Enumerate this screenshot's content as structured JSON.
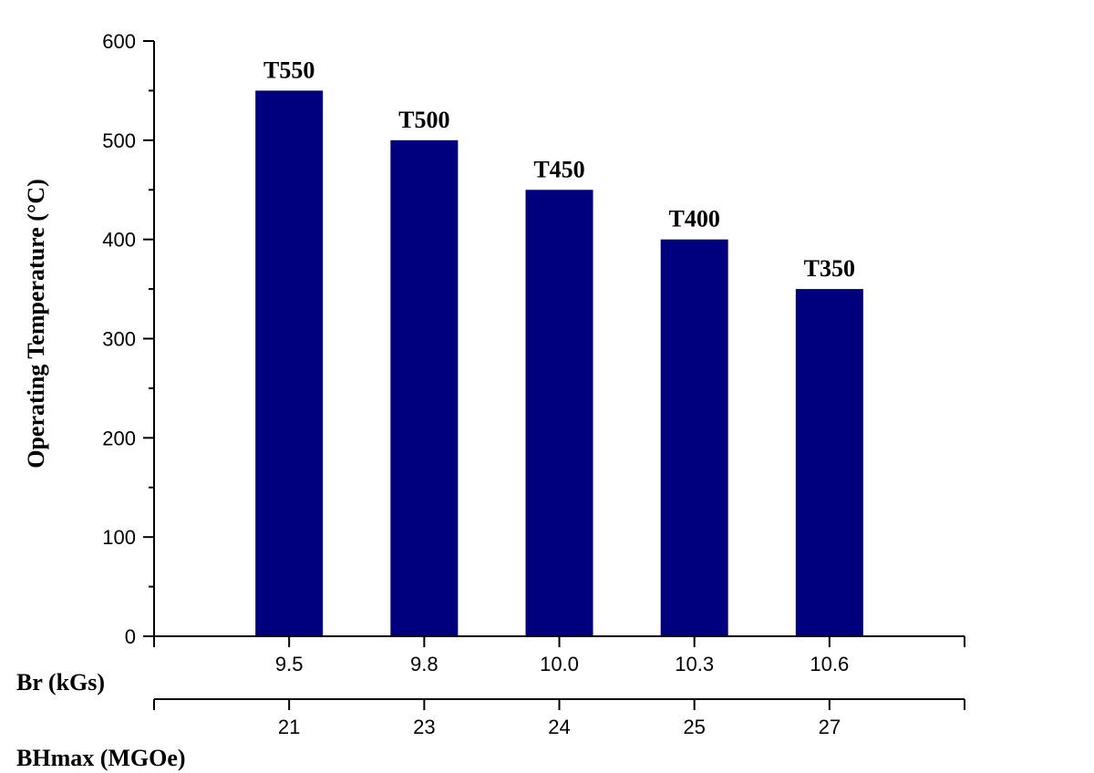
{
  "chart_data": {
    "type": "bar",
    "title": "",
    "ylabel": "Operating Temperature (°C)",
    "ylim": [
      0,
      600
    ],
    "yticks": [
      0,
      100,
      200,
      300,
      400,
      500,
      600
    ],
    "bar_color": "#00007f",
    "bars": [
      {
        "label": "T550",
        "value": 550,
        "br": "9.5",
        "bhmax": "21"
      },
      {
        "label": "T500",
        "value": 500,
        "br": "9.8",
        "bhmax": "23"
      },
      {
        "label": "T450",
        "value": 450,
        "br": "10.0",
        "bhmax": "24"
      },
      {
        "label": "T400",
        "value": 400,
        "br": "10.3",
        "bhmax": "25"
      },
      {
        "label": "T350",
        "value": 350,
        "br": "10.6",
        "bhmax": "27"
      }
    ],
    "x_axes": [
      {
        "title": "Br (kGs)",
        "key": "br"
      },
      {
        "title": "BHmax (MGOe)",
        "key": "bhmax"
      }
    ]
  }
}
